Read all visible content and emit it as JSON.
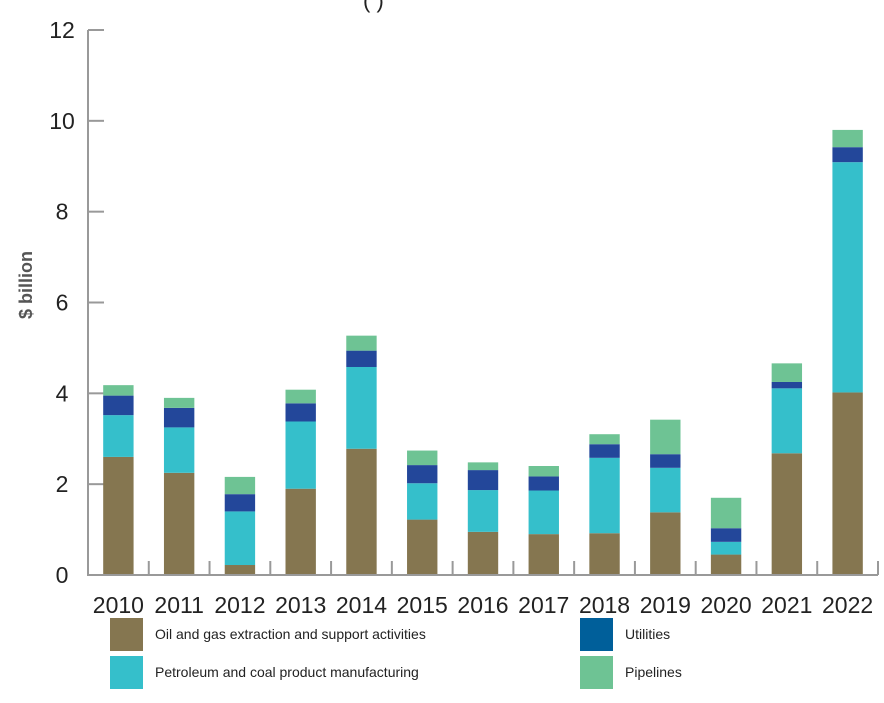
{
  "chart_data": {
    "type": "bar",
    "stacked": true,
    "title_fragment": "(                                    )",
    "xlabel": "",
    "ylabel": "$ billion",
    "ylim": [
      0,
      12
    ],
    "yticks": [
      "0",
      "2",
      "4",
      "6",
      "8",
      "10",
      "12"
    ],
    "categories": [
      "2010",
      "2011",
      "2012",
      "2013",
      "2014",
      "2015",
      "2016",
      "2017",
      "2018",
      "2019",
      "2020",
      "2021",
      "2022"
    ],
    "series": [
      {
        "name": "Oil and gas extraction and support activities",
        "color": "#857650",
        "values": [
          2.6,
          2.25,
          0.22,
          1.9,
          2.78,
          1.22,
          0.95,
          0.9,
          0.92,
          1.38,
          0.45,
          2.68,
          4.02
        ]
      },
      {
        "name": "Petroleum and coal product manufacturing",
        "color": "#35BFCB",
        "values": [
          0.92,
          1.0,
          1.18,
          1.48,
          1.8,
          0.8,
          0.92,
          0.96,
          1.66,
          0.98,
          0.28,
          1.43,
          5.07
        ]
      },
      {
        "name": "Utilities",
        "color": "#23479A",
        "values": [
          0.43,
          0.43,
          0.38,
          0.4,
          0.36,
          0.4,
          0.44,
          0.31,
          0.3,
          0.3,
          0.3,
          0.14,
          0.33
        ]
      },
      {
        "name": "Pipelines",
        "color": "#6EC394",
        "values": [
          0.23,
          0.22,
          0.38,
          0.3,
          0.33,
          0.32,
          0.17,
          0.23,
          0.22,
          0.76,
          0.67,
          0.41,
          0.38
        ]
      }
    ],
    "legend_position": "bottom",
    "legend": [
      {
        "label": "Oil and gas extraction and support activities",
        "color": "#857650"
      },
      {
        "label": "Utilities",
        "color": "#005F9A"
      },
      {
        "label": "Petroleum and coal product manufacturing",
        "color": "#35BFCB"
      },
      {
        "label": "Pipelines",
        "color": "#6EC394"
      }
    ],
    "axis_color": "#999999",
    "grid": false
  }
}
